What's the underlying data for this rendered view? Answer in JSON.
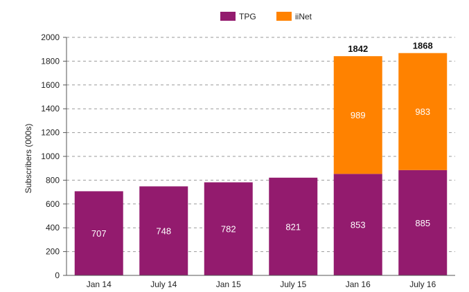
{
  "chart_data": {
    "type": "bar",
    "stacked": true,
    "categories": [
      "Jan 14",
      "July 14",
      "Jan 15",
      "July 15",
      "Jan 16",
      "July 16"
    ],
    "series": [
      {
        "name": "TPG",
        "values": [
          707,
          748,
          782,
          821,
          853,
          885
        ],
        "color": "#931b6e"
      },
      {
        "name": "iiNet",
        "values": [
          null,
          null,
          null,
          null,
          989,
          983
        ],
        "color": "#ff8200"
      }
    ],
    "totals": [
      null,
      null,
      null,
      null,
      1842,
      1868
    ],
    "ylabel": "Subscribers (000s)",
    "xlabel": "",
    "ylim": [
      0,
      2000
    ],
    "yticks": [
      0,
      200,
      400,
      600,
      800,
      1000,
      1200,
      1400,
      1600,
      1800,
      2000
    ],
    "grid": "horizontal-dashed",
    "legend_position": "top-center"
  }
}
